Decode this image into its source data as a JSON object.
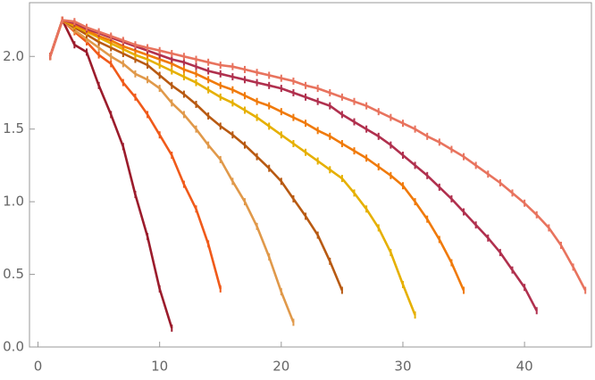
{
  "chart_data": {
    "type": "line",
    "xlim": [
      -0.7,
      45.5
    ],
    "ylim": [
      0,
      2.37
    ],
    "xticks": [
      0,
      10,
      20,
      30,
      40
    ],
    "yticks": [
      {
        "value": 0,
        "label": "0.0"
      },
      {
        "value": 0.5,
        "label": "0.5"
      },
      {
        "value": 1,
        "label": "1.0"
      },
      {
        "value": 1.5,
        "label": "1.5"
      },
      {
        "value": 2,
        "label": "2.0"
      }
    ],
    "series": [
      {
        "color": "#9b1c2c",
        "x": [
          1,
          2,
          3,
          4,
          5,
          6,
          7,
          8,
          9,
          10,
          11
        ],
        "values": [
          2.0,
          2.25,
          2.08,
          2.03,
          1.8,
          1.6,
          1.38,
          1.05,
          0.76,
          0.4,
          0.13
        ]
      },
      {
        "color": "#f05a1a",
        "x": [
          1,
          2,
          3,
          4,
          5,
          6,
          7,
          8,
          9,
          10,
          11,
          12,
          13,
          14,
          15
        ],
        "values": [
          2.0,
          2.25,
          2.17,
          2.1,
          2.01,
          1.95,
          1.82,
          1.72,
          1.6,
          1.46,
          1.32,
          1.12,
          0.95,
          0.71,
          0.4
        ]
      },
      {
        "color": "#e0994a",
        "x": [
          1,
          2,
          3,
          4,
          5,
          6,
          7,
          8,
          9,
          10,
          11,
          12,
          13,
          14,
          15,
          16,
          17,
          18,
          19,
          20,
          21
        ],
        "values": [
          2.0,
          2.25,
          2.18,
          2.12,
          2.06,
          2.0,
          1.95,
          1.88,
          1.84,
          1.78,
          1.68,
          1.6,
          1.5,
          1.39,
          1.29,
          1.14,
          1.0,
          0.83,
          0.62,
          0.38,
          0.17
        ]
      },
      {
        "color": "#b85a12",
        "x": [
          1,
          2,
          3,
          4,
          5,
          6,
          7,
          8,
          9,
          10,
          11,
          12,
          13,
          14,
          15,
          16,
          17,
          18,
          19,
          20,
          21,
          22,
          23,
          24,
          25
        ],
        "values": [
          2.0,
          2.25,
          2.2,
          2.15,
          2.1,
          2.06,
          2.02,
          1.98,
          1.94,
          1.87,
          1.8,
          1.74,
          1.67,
          1.59,
          1.52,
          1.46,
          1.39,
          1.31,
          1.23,
          1.14,
          1.02,
          0.9,
          0.77,
          0.59,
          0.39
        ]
      },
      {
        "color": "#e6b000",
        "x": [
          1,
          2,
          3,
          4,
          5,
          6,
          7,
          8,
          9,
          10,
          11,
          12,
          13,
          14,
          15,
          16,
          17,
          18,
          19,
          20,
          21,
          22,
          23,
          24,
          25,
          26,
          27,
          28,
          29,
          30,
          31
        ],
        "values": [
          2.0,
          2.25,
          2.21,
          2.17,
          2.13,
          2.09,
          2.05,
          2.01,
          1.98,
          1.94,
          1.9,
          1.86,
          1.82,
          1.77,
          1.72,
          1.68,
          1.63,
          1.58,
          1.52,
          1.46,
          1.4,
          1.34,
          1.28,
          1.22,
          1.16,
          1.06,
          0.95,
          0.82,
          0.65,
          0.43,
          0.22
        ]
      },
      {
        "color": "#f07a0a",
        "x": [
          1,
          2,
          3,
          4,
          5,
          6,
          7,
          8,
          9,
          10,
          11,
          12,
          13,
          14,
          15,
          16,
          17,
          18,
          19,
          20,
          21,
          22,
          23,
          24,
          25,
          26,
          27,
          28,
          29,
          30,
          31,
          32,
          33,
          34,
          35
        ],
        "values": [
          2.0,
          2.25,
          2.22,
          2.18,
          2.14,
          2.11,
          2.07,
          2.04,
          2.01,
          1.98,
          1.95,
          1.91,
          1.88,
          1.84,
          1.8,
          1.77,
          1.73,
          1.69,
          1.66,
          1.62,
          1.58,
          1.54,
          1.49,
          1.45,
          1.4,
          1.35,
          1.3,
          1.24,
          1.18,
          1.11,
          1.0,
          0.88,
          0.74,
          0.58,
          0.39
        ]
      },
      {
        "color": "#b0304e",
        "x": [
          1,
          2,
          3,
          4,
          5,
          6,
          7,
          8,
          9,
          10,
          11,
          12,
          13,
          14,
          15,
          16,
          17,
          18,
          19,
          20,
          21,
          22,
          23,
          24,
          25,
          26,
          27,
          28,
          29,
          30,
          31,
          32,
          33,
          34,
          35,
          36,
          37,
          38,
          39,
          40,
          41
        ],
        "values": [
          2.0,
          2.25,
          2.23,
          2.19,
          2.16,
          2.13,
          2.1,
          2.07,
          2.04,
          2.01,
          1.98,
          1.96,
          1.93,
          1.9,
          1.88,
          1.86,
          1.84,
          1.82,
          1.8,
          1.78,
          1.75,
          1.72,
          1.69,
          1.66,
          1.6,
          1.55,
          1.5,
          1.45,
          1.39,
          1.32,
          1.25,
          1.18,
          1.1,
          1.02,
          0.93,
          0.84,
          0.75,
          0.65,
          0.53,
          0.41,
          0.25
        ]
      },
      {
        "color": "#e8735e",
        "x": [
          1,
          2,
          3,
          4,
          5,
          6,
          7,
          8,
          9,
          10,
          11,
          12,
          13,
          14,
          15,
          16,
          17,
          18,
          19,
          20,
          21,
          22,
          23,
          24,
          25,
          26,
          27,
          28,
          29,
          30,
          31,
          32,
          33,
          34,
          35,
          36,
          37,
          38,
          39,
          40,
          41,
          42,
          43,
          44,
          45
        ],
        "values": [
          2.0,
          2.25,
          2.24,
          2.2,
          2.17,
          2.14,
          2.11,
          2.08,
          2.06,
          2.04,
          2.02,
          2.0,
          1.98,
          1.96,
          1.94,
          1.93,
          1.91,
          1.89,
          1.87,
          1.85,
          1.83,
          1.8,
          1.78,
          1.75,
          1.72,
          1.69,
          1.66,
          1.62,
          1.58,
          1.54,
          1.5,
          1.45,
          1.41,
          1.36,
          1.31,
          1.25,
          1.19,
          1.13,
          1.06,
          0.99,
          0.91,
          0.82,
          0.7,
          0.55,
          0.39
        ]
      }
    ]
  }
}
